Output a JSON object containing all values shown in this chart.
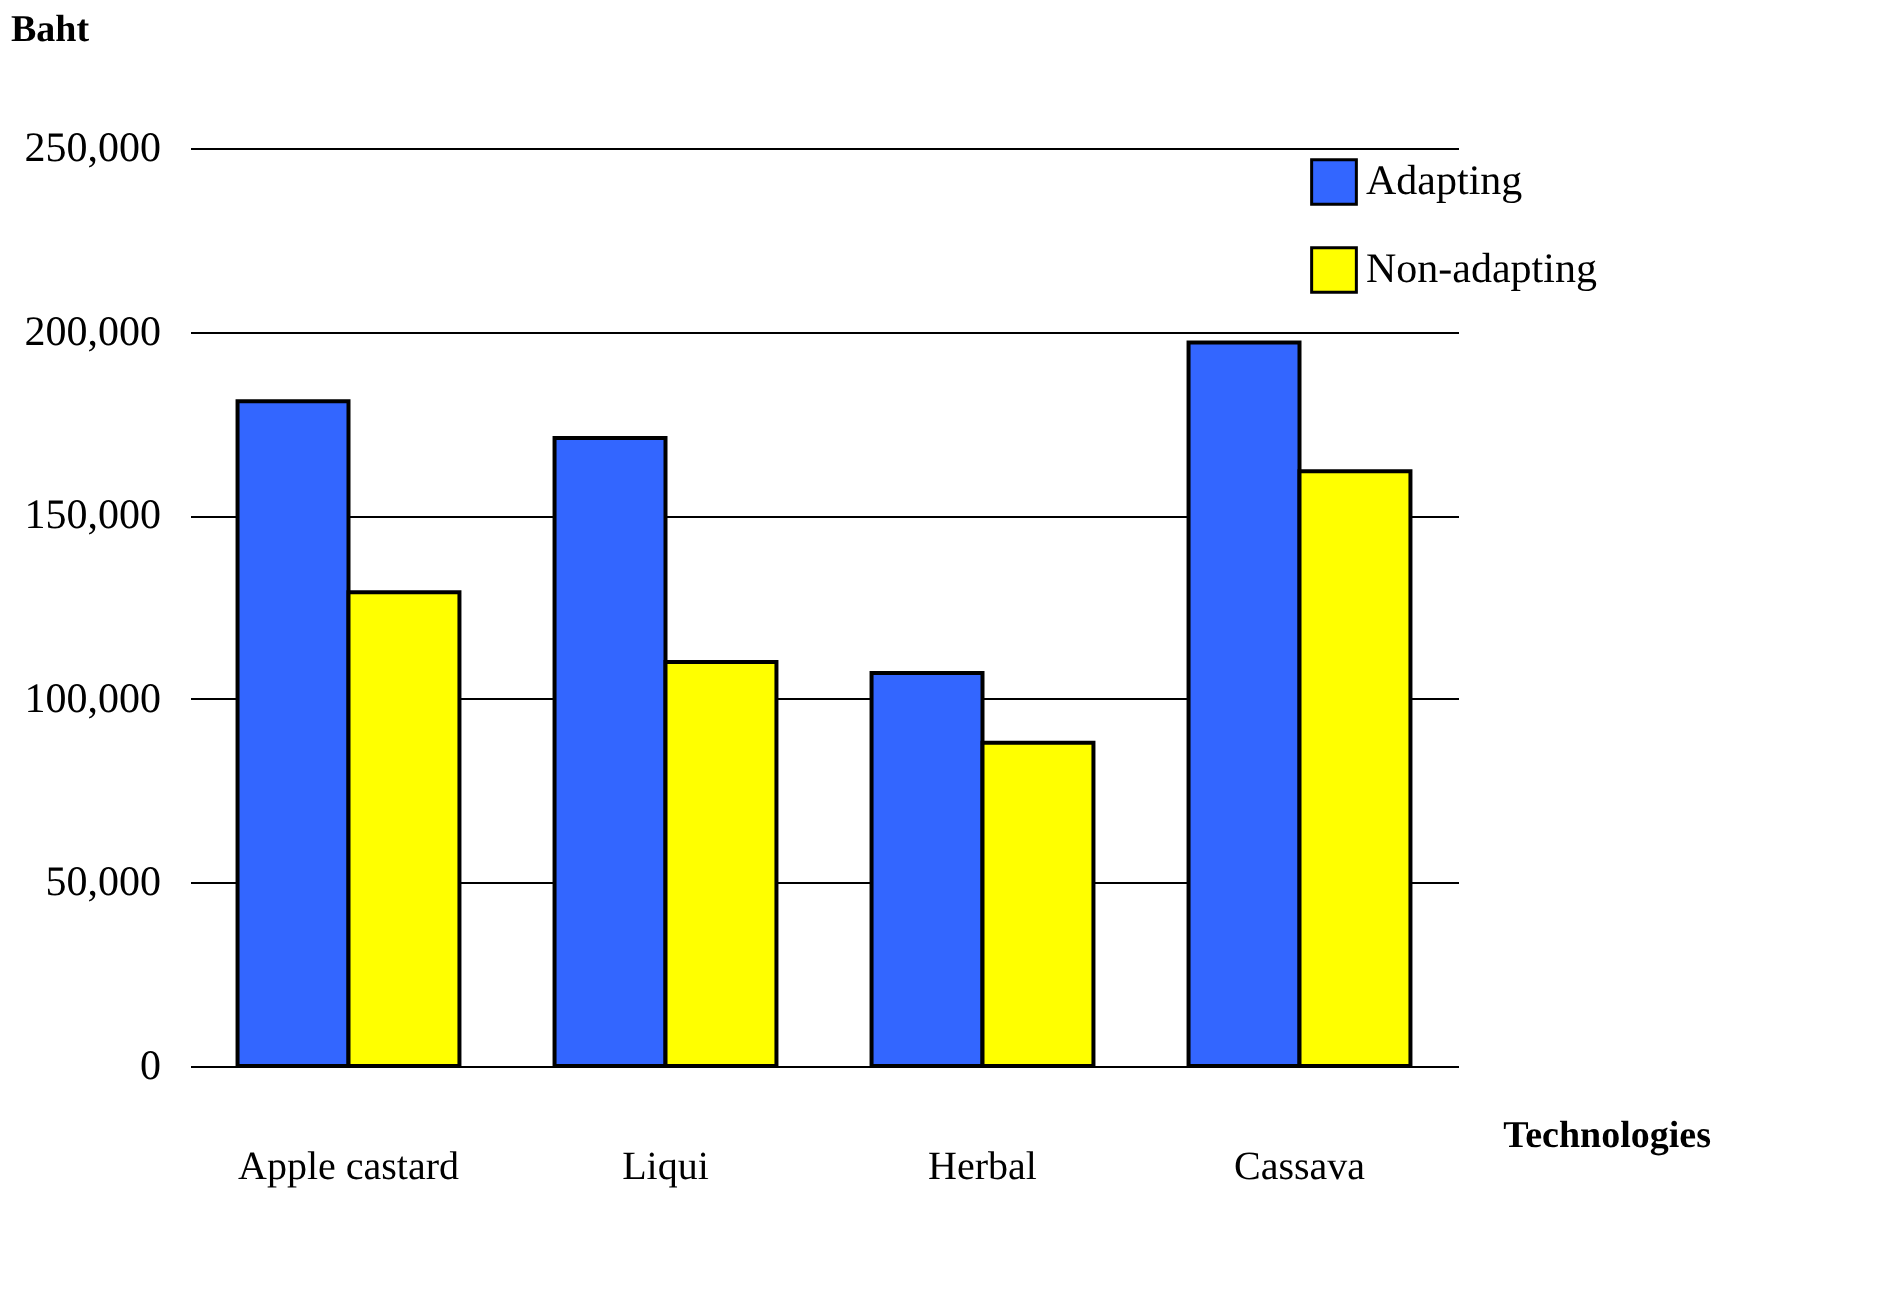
{
  "chart_data": {
    "type": "bar",
    "xlabel": "Technologies",
    "ylabel": "Baht",
    "categories": [
      "Apple castard",
      "Liqui",
      "Herbal",
      "Cassava"
    ],
    "series": [
      {
        "name": "Adapting",
        "color": "#3366ff",
        "values": [
          181000,
          171000,
          107000,
          197000
        ]
      },
      {
        "name": "Non-adapting",
        "color": "#ffff00",
        "values": [
          129000,
          110000,
          88000,
          162000
        ]
      }
    ],
    "ylim": [
      0,
      250000
    ],
    "yticks": [
      0,
      {
        "value": 50000,
        "label": "50,000"
      },
      {
        "value": 100000,
        "label": "100,000"
      },
      {
        "value": 150000,
        "label": "150,000"
      },
      {
        "value": 200000,
        "label": "200,000"
      },
      {
        "value": 250000,
        "label": "250,000"
      }
    ],
    "grid": "y",
    "legend": "top right"
  }
}
